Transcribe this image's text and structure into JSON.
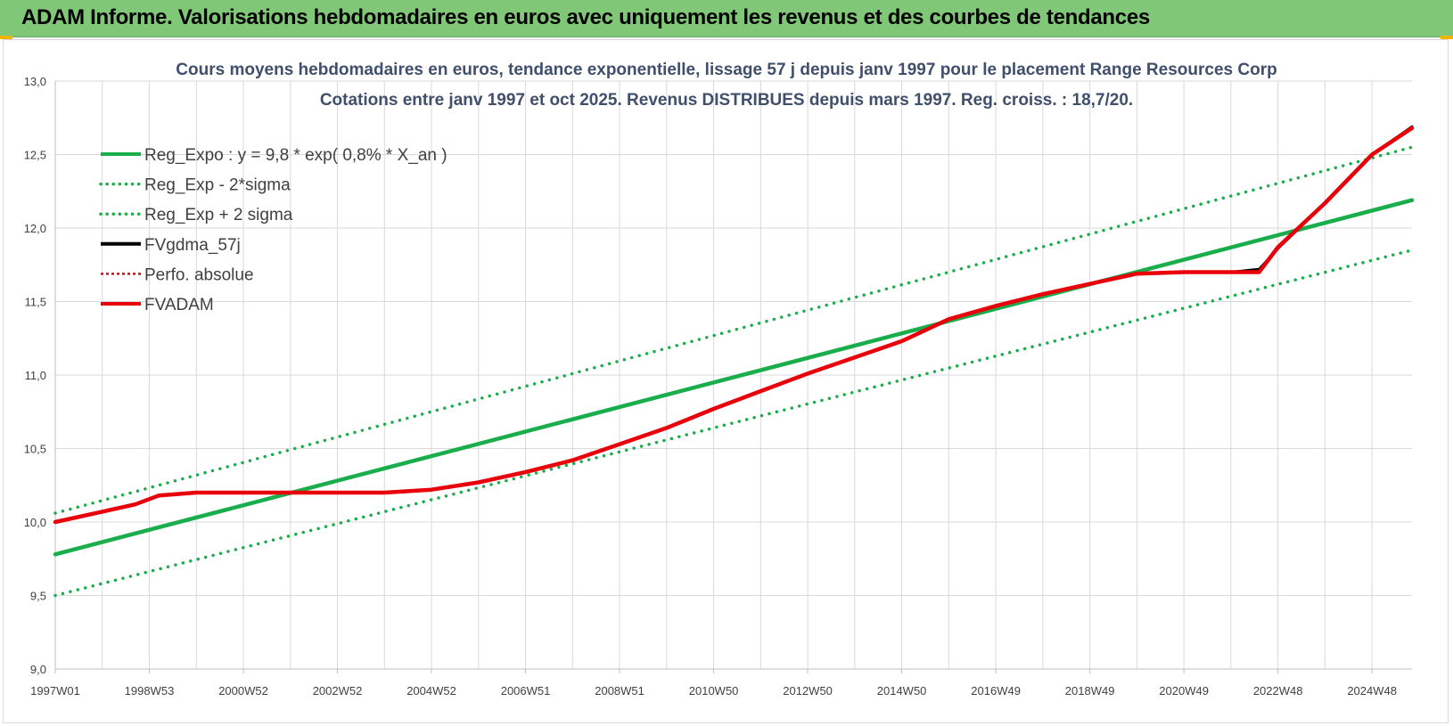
{
  "header": {
    "title": "ADAM Informe. Valorisations hebdomadaires en euros avec uniquement les revenus et des courbes de tendances"
  },
  "colors": {
    "header_bg": "#80c878",
    "green": "#1aad4c",
    "black": "#000000",
    "red": "#e8000b",
    "title": "#404f6b",
    "grid": "#d9d9d9"
  },
  "chart_data": {
    "type": "line",
    "title_line1": "Cours moyens hebdomadaires en euros, tendance exponentielle, lissage 57 j depuis janv 1997 pour le placement Range Resources Corp",
    "title_line2": "Cotations entre janv 1997 et oct 2025. Revenus DISTRIBUES depuis mars 1997. Reg. croiss. : 18,7/20.",
    "ylim": [
      9.0,
      13.0
    ],
    "y_ticks": [
      "9,0",
      "9,5",
      "10,0",
      "10,5",
      "11,0",
      "11,5",
      "12,0",
      "12,5",
      "13,0"
    ],
    "x_range": [
      1997.0,
      2025.85
    ],
    "x_ticks": [
      {
        "label": "1997W01",
        "t": 1997.0
      },
      {
        "label": "1998W53",
        "t": 1999.0
      },
      {
        "label": "2000W52",
        "t": 2001.0
      },
      {
        "label": "2002W52",
        "t": 2003.0
      },
      {
        "label": "2004W52",
        "t": 2005.0
      },
      {
        "label": "2006W51",
        "t": 2007.0
      },
      {
        "label": "2008W51",
        "t": 2009.0
      },
      {
        "label": "2010W50",
        "t": 2011.0
      },
      {
        "label": "2012W50",
        "t": 2013.0
      },
      {
        "label": "2014W50",
        "t": 2015.0
      },
      {
        "label": "2016W49",
        "t": 2017.0
      },
      {
        "label": "2018W49",
        "t": 2019.0
      },
      {
        "label": "2020W49",
        "t": 2021.0
      },
      {
        "label": "2022W48",
        "t": 2023.0
      },
      {
        "label": "2024W48",
        "t": 2025.0
      }
    ],
    "grid": true,
    "legend_position": "top-left",
    "series": [
      {
        "name": "Reg_Expo : y = 9,8 * exp( 0,8% *  X_an )",
        "color": "#1aad4c",
        "style": "solid",
        "x": [
          1997.0,
          2025.85
        ],
        "y": [
          9.78,
          12.19
        ]
      },
      {
        "name": "Reg_Exp - 2*sigma",
        "color": "#1aad4c",
        "style": "dotted",
        "x": [
          1997.0,
          2025.85
        ],
        "y": [
          9.5,
          11.85
        ]
      },
      {
        "name": "Reg_Exp + 2 sigma",
        "color": "#1aad4c",
        "style": "dotted",
        "x": [
          1997.0,
          2025.85
        ],
        "y": [
          10.06,
          12.55
        ]
      },
      {
        "name": "FVgdma_57j",
        "color": "#000000",
        "style": "solid",
        "x": [
          1997.0,
          1998.0,
          1998.7,
          1999.2,
          2000.0,
          2003.0,
          2004.0,
          2005.0,
          2006.0,
          2007.0,
          2008.0,
          2009.0,
          2010.0,
          2011.0,
          2012.0,
          2013.0,
          2014.0,
          2015.0,
          2016.0,
          2017.0,
          2018.0,
          2019.0,
          2020.0,
          2021.0,
          2022.0,
          2022.6,
          2023.0,
          2024.0,
          2025.0,
          2025.85
        ],
        "y": [
          10.0,
          10.07,
          10.12,
          10.18,
          10.2,
          10.2,
          10.2,
          10.22,
          10.27,
          10.34,
          10.42,
          10.53,
          10.64,
          10.77,
          10.89,
          11.01,
          11.12,
          11.23,
          11.38,
          11.47,
          11.55,
          11.62,
          11.69,
          11.7,
          11.7,
          11.72,
          11.86,
          12.17,
          12.5,
          12.69
        ]
      },
      {
        "name": "Perfo. absolue",
        "color": "#e8000b",
        "style": "dotted",
        "x": [
          1997.0,
          1998.0,
          1998.7,
          1999.2,
          2000.0,
          2003.0,
          2004.0,
          2005.0,
          2006.0,
          2007.0,
          2008.0,
          2009.0,
          2010.0,
          2011.0,
          2012.0,
          2013.0,
          2014.0,
          2015.0,
          2016.0,
          2017.0,
          2018.0,
          2019.0,
          2020.0,
          2021.0,
          2022.0,
          2022.6,
          2023.0,
          2024.0,
          2025.0,
          2025.85
        ],
        "y": [
          10.0,
          10.07,
          10.12,
          10.18,
          10.2,
          10.2,
          10.2,
          10.22,
          10.27,
          10.34,
          10.42,
          10.53,
          10.64,
          10.77,
          10.89,
          11.01,
          11.12,
          11.23,
          11.38,
          11.47,
          11.55,
          11.62,
          11.69,
          11.7,
          11.7,
          11.7,
          11.87,
          12.17,
          12.5,
          12.68
        ]
      },
      {
        "name": "FVADAM",
        "color": "#e8000b",
        "style": "solid",
        "x": [
          1997.0,
          1998.0,
          1998.7,
          1999.2,
          2000.0,
          2003.0,
          2004.0,
          2005.0,
          2006.0,
          2007.0,
          2008.0,
          2009.0,
          2010.0,
          2011.0,
          2012.0,
          2013.0,
          2014.0,
          2015.0,
          2016.0,
          2017.0,
          2018.0,
          2019.0,
          2020.0,
          2021.0,
          2022.0,
          2022.6,
          2023.0,
          2024.0,
          2025.0,
          2025.85
        ],
        "y": [
          10.0,
          10.07,
          10.12,
          10.18,
          10.2,
          10.2,
          10.2,
          10.22,
          10.27,
          10.34,
          10.42,
          10.53,
          10.64,
          10.77,
          10.89,
          11.01,
          11.12,
          11.23,
          11.38,
          11.47,
          11.55,
          11.62,
          11.69,
          11.7,
          11.7,
          11.7,
          11.87,
          12.17,
          12.5,
          12.68
        ]
      }
    ]
  }
}
